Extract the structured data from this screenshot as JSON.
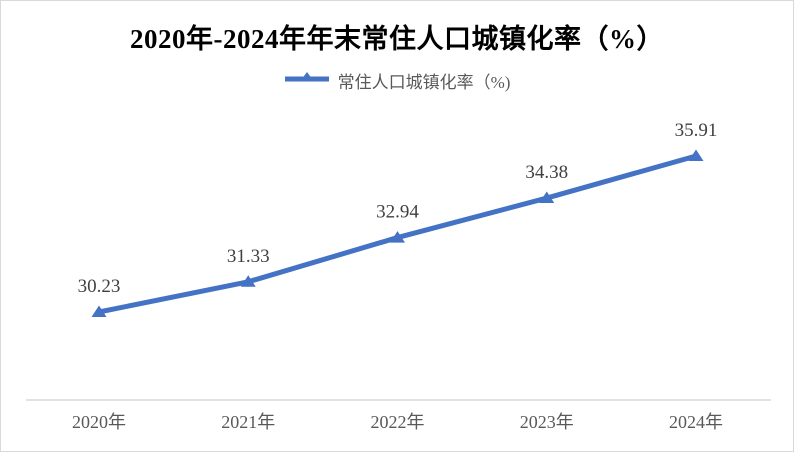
{
  "page": {
    "background": "#ffffff",
    "border_color": "#d9d9d9"
  },
  "title": {
    "text": "2020年-2024年年末常住人口城镇化率（%）",
    "color": "#000000"
  },
  "legend": {
    "label": "常住人口城镇化率（%)",
    "text_color": "#595959",
    "marker_color": "#4472c4",
    "marker_shape": "triangle-on-line"
  },
  "chart_data": {
    "type": "line",
    "categories": [
      "2020年",
      "2021年",
      "2022年",
      "2023年",
      "2024年"
    ],
    "series": [
      {
        "name": "常住人口城镇化率（%)",
        "values": [
          30.23,
          31.33,
          32.94,
          34.38,
          35.91
        ]
      }
    ],
    "data_labels": [
      "30.23",
      "31.33",
      "32.94",
      "34.38",
      "35.91"
    ],
    "title": "2020年-2024年年末常住人口城镇化率（%）",
    "xlabel": "",
    "ylabel": "",
    "ylim": [
      27,
      37
    ],
    "grid": false,
    "legend_position": "top",
    "line_color": "#4472c4",
    "marker": "triangle",
    "data_label_color": "#404040",
    "tick_label_color": "#595959",
    "axis_line_color": "#d9d9d9"
  }
}
